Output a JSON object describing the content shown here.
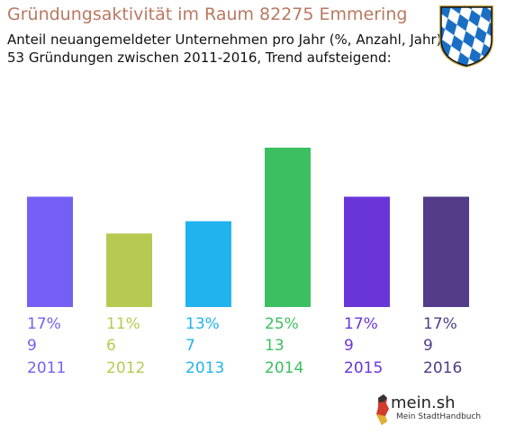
{
  "header": {
    "title": "Gründungsaktivität im Raum 82275 Emmering",
    "subtitle_line1": "Anteil neuangemeldeter Unternehmen pro Jahr (%, Anzahl, Jahr)",
    "subtitle_line2": "53 Gründungen zwischen 2011-2016, Trend aufsteigend:"
  },
  "crest": {
    "icon": "bavarian-lozenge-crest-icon",
    "colors": [
      "#1a6fc4",
      "#ffffff",
      "#c8a84a"
    ]
  },
  "chart_data": {
    "type": "bar",
    "categories": [
      "2011",
      "2012",
      "2013",
      "2014",
      "2015",
      "2016"
    ],
    "series": [
      {
        "percent_labels": [
          "17%",
          "11%",
          "13%",
          "25%",
          "17%",
          "17%"
        ],
        "values": [
          9,
          6,
          7,
          13,
          9,
          9
        ]
      }
    ],
    "colors": [
      "#7560f5",
      "#b8c952",
      "#21b3ee",
      "#3bbf60",
      "#6a35d8",
      "#523b88"
    ],
    "ylim": [
      0,
      13
    ],
    "grid": false,
    "legend": "none"
  },
  "footer": {
    "brand": "mein.sh",
    "tagline": "Mein StadtHandbuch",
    "logo_icon": "germany-map-icon"
  }
}
